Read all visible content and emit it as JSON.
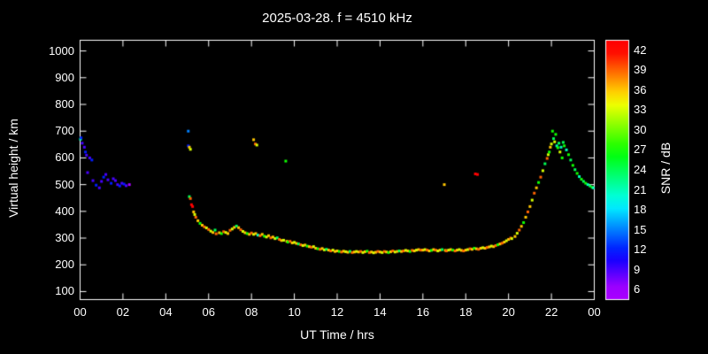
{
  "title": "2025-03-28. f = 4510 kHz",
  "colors": {
    "background": "#000000",
    "axis": "#ffffff",
    "text": "#ffffff"
  },
  "colorbar": {
    "label": "SNR / dB",
    "ticks": [
      42,
      39,
      36,
      33,
      30,
      27,
      24,
      21,
      18,
      15,
      12,
      9,
      6
    ],
    "value_range": [
      4.5,
      43.5
    ]
  },
  "chart_data": {
    "type": "scatter",
    "title": "2025-03-28. f = 4510 kHz",
    "xlabel": "UT Time / hrs",
    "ylabel": "Virtual height / km",
    "xlim": [
      0,
      24
    ],
    "ylim": [
      100,
      1000
    ],
    "x_ticks": [
      "00",
      "02",
      "04",
      "06",
      "08",
      "10",
      "12",
      "14",
      "16",
      "18",
      "20",
      "22",
      "00"
    ],
    "x_tick_values": [
      0,
      2,
      4,
      6,
      8,
      10,
      12,
      14,
      16,
      18,
      20,
      22,
      24
    ],
    "y_ticks": [
      100,
      200,
      300,
      400,
      500,
      600,
      700,
      800,
      900,
      1000
    ],
    "grid": false,
    "legend": "colorbar-right",
    "point_format": [
      "ut_hour",
      "virtual_height_km",
      "snr_db"
    ],
    "points": [
      [
        0.02,
        670,
        21
      ],
      [
        0.05,
        675,
        12
      ],
      [
        0.1,
        655,
        9
      ],
      [
        0.2,
        640,
        9
      ],
      [
        0.25,
        622,
        12
      ],
      [
        0.3,
        610,
        9
      ],
      [
        0.45,
        600,
        9
      ],
      [
        0.55,
        592,
        12
      ],
      [
        0.35,
        545,
        9
      ],
      [
        0.6,
        515,
        9
      ],
      [
        0.75,
        498,
        12
      ],
      [
        0.9,
        488,
        9
      ],
      [
        1.0,
        512,
        9
      ],
      [
        1.1,
        528,
        12
      ],
      [
        1.2,
        538,
        9
      ],
      [
        1.3,
        518,
        9
      ],
      [
        1.45,
        505,
        12
      ],
      [
        1.55,
        522,
        9
      ],
      [
        1.65,
        515,
        9
      ],
      [
        1.75,
        500,
        9
      ],
      [
        1.85,
        495,
        12
      ],
      [
        1.95,
        505,
        9
      ],
      [
        2.05,
        502,
        12
      ],
      [
        2.15,
        496,
        9
      ],
      [
        2.3,
        500,
        6
      ],
      [
        5.05,
        700,
        15
      ],
      [
        5.05,
        645,
        12
      ],
      [
        5.1,
        640,
        36
      ],
      [
        5.15,
        632,
        33
      ],
      [
        5.1,
        455,
        24
      ],
      [
        5.15,
        448,
        39
      ],
      [
        5.2,
        425,
        42
      ],
      [
        5.25,
        418,
        42
      ],
      [
        5.3,
        398,
        36
      ],
      [
        5.35,
        388,
        33
      ],
      [
        5.4,
        378,
        39
      ],
      [
        5.5,
        365,
        36
      ],
      [
        5.6,
        355,
        27
      ],
      [
        5.7,
        348,
        36
      ],
      [
        5.8,
        342,
        39
      ],
      [
        5.9,
        338,
        33
      ],
      [
        6.0,
        332,
        39
      ],
      [
        6.1,
        326,
        33
      ],
      [
        6.2,
        321,
        36
      ],
      [
        6.3,
        330,
        24
      ],
      [
        6.35,
        316,
        39
      ],
      [
        6.5,
        320,
        36
      ],
      [
        6.6,
        317,
        27
      ],
      [
        6.7,
        324,
        39
      ],
      [
        6.8,
        321,
        33
      ],
      [
        6.9,
        317,
        36
      ],
      [
        7.0,
        329,
        39
      ],
      [
        7.1,
        334,
        33
      ],
      [
        7.2,
        340,
        36
      ],
      [
        7.3,
        345,
        24
      ],
      [
        7.4,
        339,
        36
      ],
      [
        7.5,
        331,
        39
      ],
      [
        7.6,
        325,
        33
      ],
      [
        7.7,
        320,
        36
      ],
      [
        7.8,
        317,
        27
      ],
      [
        7.9,
        314,
        36
      ],
      [
        8.1,
        668,
        36
      ],
      [
        8.18,
        652,
        39
      ],
      [
        8.25,
        648,
        33
      ],
      [
        8.0,
        319,
        39
      ],
      [
        8.1,
        314,
        33
      ],
      [
        8.2,
        317,
        36
      ],
      [
        8.3,
        311,
        21
      ],
      [
        8.4,
        309,
        39
      ],
      [
        8.5,
        314,
        36
      ],
      [
        8.6,
        307,
        27
      ],
      [
        8.7,
        304,
        33
      ],
      [
        8.8,
        309,
        36
      ],
      [
        8.9,
        301,
        39
      ],
      [
        9.0,
        304,
        36
      ],
      [
        9.1,
        298,
        33
      ],
      [
        9.2,
        301,
        24
      ],
      [
        9.3,
        295,
        39
      ],
      [
        9.4,
        291,
        36
      ],
      [
        9.5,
        292,
        33
      ],
      [
        9.6,
        588,
        27
      ],
      [
        9.65,
        288,
        36
      ],
      [
        9.7,
        285,
        27
      ],
      [
        9.8,
        288,
        39
      ],
      [
        9.9,
        282,
        36
      ],
      [
        10.0,
        284,
        33
      ],
      [
        10.1,
        280,
        36
      ],
      [
        10.2,
        278,
        24
      ],
      [
        10.3,
        275,
        39
      ],
      [
        10.4,
        272,
        33
      ],
      [
        10.5,
        274,
        36
      ],
      [
        10.6,
        270,
        27
      ],
      [
        10.7,
        268,
        36
      ],
      [
        10.8,
        266,
        39
      ],
      [
        10.9,
        268,
        33
      ],
      [
        11.0,
        262,
        36
      ],
      [
        11.1,
        260,
        27
      ],
      [
        11.2,
        258,
        39
      ],
      [
        11.3,
        261,
        36
      ],
      [
        11.4,
        256,
        33
      ],
      [
        11.5,
        258,
        24
      ],
      [
        11.6,
        255,
        36
      ],
      [
        11.7,
        252,
        39
      ],
      [
        11.8,
        255,
        33
      ],
      [
        11.9,
        250,
        36
      ],
      [
        12.0,
        252,
        36
      ],
      [
        12.1,
        250,
        27
      ],
      [
        12.2,
        248,
        39
      ],
      [
        12.3,
        251,
        36
      ],
      [
        12.4,
        249,
        33
      ],
      [
        12.5,
        247,
        36
      ],
      [
        12.6,
        250,
        24
      ],
      [
        12.7,
        246,
        39
      ],
      [
        12.8,
        248,
        36
      ],
      [
        12.9,
        250,
        33
      ],
      [
        13.0,
        248,
        36
      ],
      [
        13.1,
        250,
        39
      ],
      [
        13.2,
        246,
        33
      ],
      [
        13.3,
        249,
        36
      ],
      [
        13.4,
        251,
        27
      ],
      [
        13.5,
        246,
        39
      ],
      [
        13.6,
        248,
        36
      ],
      [
        13.7,
        245,
        33
      ],
      [
        13.8,
        247,
        36
      ],
      [
        13.9,
        250,
        39
      ],
      [
        14.0,
        248,
        36
      ],
      [
        14.1,
        246,
        33
      ],
      [
        14.2,
        250,
        39
      ],
      [
        14.3,
        248,
        36
      ],
      [
        14.4,
        246,
        27
      ],
      [
        14.5,
        249,
        36
      ],
      [
        14.6,
        252,
        39
      ],
      [
        14.7,
        248,
        33
      ],
      [
        14.8,
        250,
        36
      ],
      [
        14.9,
        252,
        24
      ],
      [
        15.0,
        250,
        36
      ],
      [
        15.1,
        252,
        39
      ],
      [
        15.2,
        254,
        33
      ],
      [
        15.3,
        252,
        36
      ],
      [
        15.4,
        250,
        27
      ],
      [
        15.5,
        254,
        39
      ],
      [
        15.6,
        252,
        36
      ],
      [
        15.7,
        255,
        33
      ],
      [
        15.8,
        257,
        36
      ],
      [
        15.9,
        255,
        39
      ],
      [
        16.0,
        255,
        36
      ],
      [
        16.1,
        257,
        33
      ],
      [
        16.2,
        255,
        39
      ],
      [
        16.3,
        252,
        36
      ],
      [
        16.4,
        254,
        27
      ],
      [
        16.5,
        257,
        36
      ],
      [
        16.6,
        255,
        39
      ],
      [
        16.7,
        252,
        33
      ],
      [
        16.8,
        255,
        36
      ],
      [
        16.9,
        257,
        24
      ],
      [
        17.0,
        500,
        36
      ],
      [
        17.05,
        254,
        36
      ],
      [
        17.1,
        252,
        39
      ],
      [
        17.2,
        255,
        33
      ],
      [
        17.3,
        257,
        36
      ],
      [
        17.4,
        255,
        27
      ],
      [
        17.5,
        252,
        39
      ],
      [
        17.6,
        255,
        36
      ],
      [
        17.7,
        257,
        33
      ],
      [
        17.8,
        254,
        36
      ],
      [
        17.9,
        252,
        39
      ],
      [
        18.0,
        255,
        36
      ],
      [
        18.1,
        257,
        33
      ],
      [
        18.2,
        260,
        39
      ],
      [
        18.3,
        258,
        36
      ],
      [
        18.4,
        262,
        27
      ],
      [
        18.45,
        540,
        42
      ],
      [
        18.55,
        538,
        42
      ],
      [
        18.5,
        260,
        36
      ],
      [
        18.6,
        258,
        39
      ],
      [
        18.7,
        262,
        36
      ],
      [
        18.8,
        264,
        33
      ],
      [
        18.9,
        262,
        36
      ],
      [
        19.0,
        265,
        39
      ],
      [
        19.1,
        267,
        36
      ],
      [
        19.2,
        270,
        33
      ],
      [
        19.3,
        268,
        36
      ],
      [
        19.4,
        272,
        39
      ],
      [
        19.5,
        275,
        27
      ],
      [
        19.6,
        278,
        36
      ],
      [
        19.7,
        281,
        39
      ],
      [
        19.8,
        285,
        36
      ],
      [
        19.9,
        290,
        33
      ],
      [
        20.0,
        295,
        36
      ],
      [
        20.1,
        300,
        39
      ],
      [
        20.15,
        298,
        33
      ],
      [
        20.3,
        306,
        36
      ],
      [
        20.4,
        318,
        33
      ],
      [
        20.5,
        330,
        39
      ],
      [
        20.6,
        344,
        36
      ],
      [
        20.7,
        358,
        27
      ],
      [
        20.8,
        378,
        36
      ],
      [
        20.9,
        398,
        39
      ],
      [
        21.0,
        418,
        36
      ],
      [
        21.1,
        442,
        33
      ],
      [
        21.2,
        468,
        39
      ],
      [
        21.3,
        488,
        36
      ],
      [
        21.4,
        508,
        27
      ],
      [
        21.5,
        528,
        39
      ],
      [
        21.6,
        552,
        33
      ],
      [
        21.7,
        578,
        24
      ],
      [
        21.8,
        598,
        39
      ],
      [
        21.85,
        612,
        33
      ],
      [
        21.9,
        622,
        27
      ],
      [
        21.95,
        640,
        36
      ],
      [
        22.0,
        652,
        33
      ],
      [
        22.05,
        700,
        27
      ],
      [
        22.1,
        672,
        24
      ],
      [
        22.15,
        660,
        33
      ],
      [
        22.2,
        688,
        27
      ],
      [
        22.25,
        645,
        21
      ],
      [
        22.3,
        638,
        27
      ],
      [
        22.35,
        655,
        24
      ],
      [
        22.4,
        622,
        33
      ],
      [
        22.45,
        640,
        21
      ],
      [
        22.5,
        600,
        27
      ],
      [
        22.55,
        658,
        24
      ],
      [
        22.6,
        645,
        27
      ],
      [
        22.7,
        630,
        21
      ],
      [
        22.8,
        612,
        27
      ],
      [
        22.9,
        592,
        24
      ],
      [
        23.0,
        572,
        27
      ],
      [
        23.1,
        556,
        24
      ],
      [
        23.2,
        542,
        27
      ],
      [
        23.3,
        530,
        21
      ],
      [
        23.4,
        520,
        27
      ],
      [
        23.5,
        512,
        24
      ],
      [
        23.6,
        505,
        27
      ],
      [
        23.7,
        500,
        21
      ],
      [
        23.8,
        495,
        24
      ],
      [
        23.9,
        490,
        27
      ],
      [
        23.95,
        488,
        21
      ]
    ]
  }
}
